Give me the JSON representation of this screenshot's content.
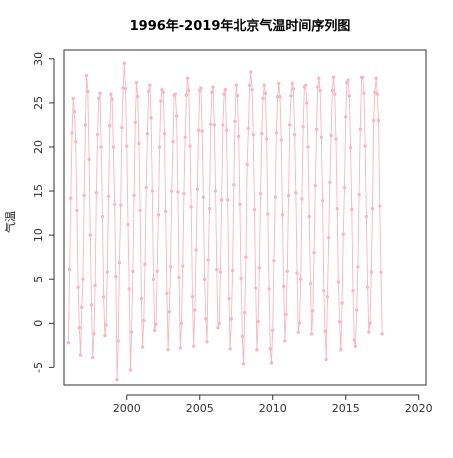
{
  "chart_data": {
    "type": "line",
    "title": "1996年-2019年北京气温时间序列图",
    "xlabel": "",
    "ylabel": "气温",
    "xlim": [
      1995.7,
      2020.5
    ],
    "ylim": [
      -7,
      31
    ],
    "x_ticks": [
      2000,
      2005,
      2010,
      2015,
      2020
    ],
    "y_ticks": [
      -5,
      0,
      5,
      10,
      15,
      20,
      25,
      30
    ],
    "grid": false,
    "legend": "none",
    "line_color": "#f7b7c3",
    "marker": "circle",
    "series": [
      {
        "x_start": 1996.0,
        "x_step": 0.08333,
        "frequency": "monthly",
        "values": [
          -2.2,
          6.1,
          14.2,
          21.6,
          25.5,
          24.0,
          20.6,
          12.8,
          4.1,
          -0.5,
          -3.6,
          1.8,
          5.0,
          14.5,
          22.5,
          28.1,
          26.3,
          18.6,
          10.0,
          2.1,
          -3.9,
          -1.2,
          4.3,
          14.8,
          21.4,
          25.5,
          26.1,
          20.0,
          12.1,
          3.0,
          -1.4,
          -0.2,
          5.8,
          14.4,
          22.4,
          26.0,
          25.4,
          20.0,
          13.5,
          5.3,
          -6.4,
          -2.0,
          6.9,
          13.4,
          22.2,
          26.7,
          29.5,
          26.6,
          20.1,
          11.2,
          3.9,
          -5.3,
          -1.0,
          5.9,
          14.5,
          22.8,
          27.3,
          25.7,
          20.4,
          12.8,
          2.8,
          -2.7,
          0.3,
          6.7,
          15.4,
          21.5,
          26.3,
          27.0,
          23.3,
          15.0,
          5.0,
          -0.8,
          -0.1,
          5.9,
          12.3,
          20.0,
          25.2,
          26.5,
          26.2,
          21.5,
          12.7,
          3.4,
          -3.0,
          1.3,
          6.4,
          15.0,
          20.6,
          25.9,
          26.0,
          23.5,
          14.9,
          5.2,
          -2.8,
          0.0,
          6.5,
          14.7,
          21.1,
          25.9,
          27.8,
          26.4,
          20.1,
          13.2,
          3.0,
          -2.6,
          1.5,
          8.3,
          15.2,
          21.9,
          26.4,
          26.7,
          21.8,
          14.3,
          5.0,
          0.5,
          -2.1,
          7.2,
          13.0,
          22.6,
          26.2,
          26.8,
          22.5,
          15.0,
          6.1,
          -0.5,
          0.0,
          5.8,
          14.0,
          22.5,
          26.0,
          26.5,
          21.9,
          14.0,
          2.8,
          -2.9,
          0.5,
          6.0,
          15.7,
          22.9,
          27.0,
          25.8,
          21.2,
          13.5,
          5.1,
          -1.5,
          -4.6,
          1.2,
          7.5,
          18.0,
          22.1,
          27.0,
          28.5,
          26.5,
          21.4,
          12.9,
          4.0,
          -3.0,
          0.2,
          6.3,
          14.7,
          21.5,
          25.5,
          27.0,
          26.1,
          20.9,
          12.4,
          3.9,
          -2.9,
          -4.5,
          -0.8,
          7.1,
          14.3,
          21.6,
          25.7,
          27.2,
          25.7,
          20.8,
          12.3,
          4.2,
          -2.0,
          1.0,
          5.9,
          14.5,
          22.5,
          25.8,
          27.2,
          26.6,
          21.4,
          14.8,
          5.7,
          -1.0,
          0.0,
          5.0,
          14.1,
          22.3,
          26.8,
          27.0,
          25.0,
          20.0,
          12.1,
          4.5,
          -1.2,
          1.4,
          8.0,
          15.6,
          22.0,
          26.8,
          27.8,
          26.4,
          21.1,
          13.9,
          3.7,
          -0.9,
          -4.1,
          3.0,
          9.7,
          16.0,
          21.3,
          26.4,
          27.9,
          26.0,
          20.9,
          13.0,
          4.7,
          0.2,
          -3.0,
          2.3,
          10.1,
          15.4,
          23.4,
          27.3,
          27.6,
          25.8,
          19.9,
          12.9,
          3.7,
          -1.9,
          -2.6,
          1.5,
          6.4,
          14.6,
          22.0,
          27.9,
          27.9,
          26.1,
          20.1,
          12.1,
          4.1,
          -1.0,
          0.0,
          5.8,
          13.0,
          23.0,
          26.2,
          27.8,
          26.0,
          23.0,
          13.3,
          5.8,
          -1.2
        ]
      }
    ]
  }
}
